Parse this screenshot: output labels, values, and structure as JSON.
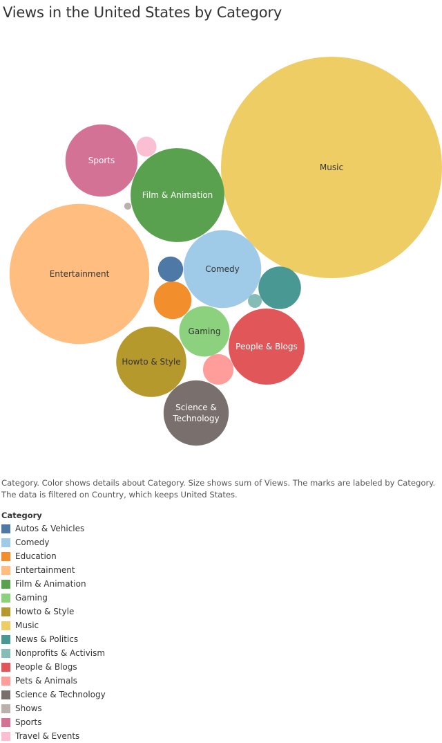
{
  "title": "Views in the United States by Category",
  "caption": "Category.  Color shows details about Category.  Size shows sum of Views.  The marks are labeled by Category. The data is filtered on Country, which keeps United States.",
  "legend_title": "Category",
  "chart_data": {
    "type": "bubble",
    "title": "Views in the United States by Category",
    "measure": "sum of Views",
    "series": [
      {
        "name": "Music",
        "relative_size": 1.0,
        "label": "Music",
        "color": "#EFCD65",
        "label_color": "#333333"
      },
      {
        "name": "Entertainment",
        "relative_size": 0.4,
        "label": "Entertainment",
        "color": "#FFBD7F",
        "label_color": "#333333"
      },
      {
        "name": "Film & Animation",
        "relative_size": 0.18,
        "label": "Film & Animation",
        "color": "#59A14F",
        "label_color": "#ffffff"
      },
      {
        "name": "Comedy",
        "relative_size": 0.124,
        "label": "Comedy",
        "color": "#A0CBE8",
        "label_color": "#333333"
      },
      {
        "name": "People & Blogs",
        "relative_size": 0.118,
        "label": "People & Blogs",
        "color": "#E15759",
        "label_color": "#ffffff"
      },
      {
        "name": "Sports",
        "relative_size": 0.107,
        "label": "Sports",
        "color": "#D37295",
        "label_color": "#ffffff"
      },
      {
        "name": "Howto & Style",
        "relative_size": 0.101,
        "label": "Howto & Style",
        "color": "#B6992D",
        "label_color": "#333333"
      },
      {
        "name": "Science & Technology",
        "relative_size": 0.087,
        "label": "Science &\nTechnology",
        "color": "#79706E",
        "label_color": "#ffffff"
      },
      {
        "name": "Gaming",
        "relative_size": 0.052,
        "label": "Gaming",
        "color": "#8CD17D",
        "label_color": "#333333"
      },
      {
        "name": "News & Politics",
        "relative_size": 0.037,
        "label": "",
        "color": "#499894",
        "label_color": "#ffffff"
      },
      {
        "name": "Education",
        "relative_size": 0.029,
        "label": "",
        "color": "#F28E2B",
        "label_color": "#ffffff"
      },
      {
        "name": "Pets & Animals",
        "relative_size": 0.019,
        "label": "",
        "color": "#FF9D9A",
        "label_color": "#ffffff"
      },
      {
        "name": "Autos & Vehicles",
        "relative_size": 0.013,
        "label": "",
        "color": "#4E79A7",
        "label_color": "#ffffff"
      },
      {
        "name": "Travel & Events",
        "relative_size": 0.0082,
        "label": "",
        "color": "#FABFD2",
        "label_color": "#ffffff"
      },
      {
        "name": "Nonprofits & Activism",
        "relative_size": 0.0039,
        "label": "",
        "color": "#86BCB6",
        "label_color": "#ffffff"
      },
      {
        "name": "Shows",
        "relative_size": 0.001,
        "label": "",
        "color": "#BAB0AC",
        "label_color": "#ffffff"
      }
    ]
  },
  "legend": [
    {
      "label": "Autos & Vehicles",
      "color": "#4E79A7"
    },
    {
      "label": "Comedy",
      "color": "#A0CBE8"
    },
    {
      "label": "Education",
      "color": "#F28E2B"
    },
    {
      "label": "Entertainment",
      "color": "#FFBD7F"
    },
    {
      "label": "Film & Animation",
      "color": "#59A14F"
    },
    {
      "label": "Gaming",
      "color": "#8CD17D"
    },
    {
      "label": "Howto & Style",
      "color": "#B6992D"
    },
    {
      "label": "Music",
      "color": "#EFCD65"
    },
    {
      "label": "News & Politics",
      "color": "#499894"
    },
    {
      "label": "Nonprofits & Activism",
      "color": "#86BCB6"
    },
    {
      "label": "People & Blogs",
      "color": "#E15759"
    },
    {
      "label": "Pets & Animals",
      "color": "#FF9D9A"
    },
    {
      "label": "Science & Technology",
      "color": "#79706E"
    },
    {
      "label": "Shows",
      "color": "#BAB0AC"
    },
    {
      "label": "Sports",
      "color": "#D37295"
    },
    {
      "label": "Travel & Events",
      "color": "#FABFD2"
    }
  ]
}
